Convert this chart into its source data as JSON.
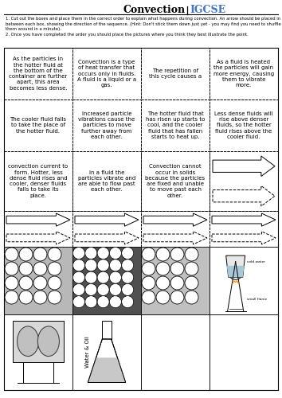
{
  "title": "Convection",
  "igcse": "IGCSE",
  "title_color": "#000000",
  "igcse_color": "#4472C4",
  "bg_color": "#ffffff",
  "instructions": "1. Cut out the boxes and place them in the correct order to explain what happens during convection. An arrow should be placed in between each box, showing the direction of the sequence. (Hint: Don't stick them down just yet - you may find you need to shuffle them around in a minute).\n2. Once you have completed the order you should place the pictures where you think they best illustrate the point.",
  "row1_texts": [
    "As the particles in\nthe hotter fluid at\nthe bottom of the\ncontainer are further\napart, this area\nbecomes less dense.",
    "Convection is a type\nof heat transfer that\noccurs only in fluids.\nA fluid is a liquid or a\ngas.",
    "The repetition of\nthis cycle causes a",
    "As a fluid is heated\nthe particles will gain\nmore energy, causing\nthem to vibrate\nmore."
  ],
  "row2_texts": [
    "The cooler fluid falls\nto take the place of\nthe hotter fluid.",
    "Increased particle\nvibrations cause the\nparticles to move\nfurther away from\neach other.",
    "The hotter fluid that\nhas risen up starts to\ncool, and the cooler\nfluid that has fallen\nstarts to heat up.",
    "Less dense fluids will\nrise above denser\nfluids, so the hotter\nfluid rises above the\ncooler fluid."
  ],
  "row3_texts": [
    "convection current to\nform. Hotter, less\ndense fluid rises and\ncooler, denser fluids\nfalls to take its\nplace.",
    "In a fluid the\nparticles vibrate and\nare able to flow past\neach other.",
    "Convection cannot\noccur in solids\nbecause the particles\nare fixed and unable\nto move past each\nother."
  ],
  "water_oil_label": "Water & Oil",
  "cold_water_label": "cold water",
  "small_flame_label": "small flame"
}
